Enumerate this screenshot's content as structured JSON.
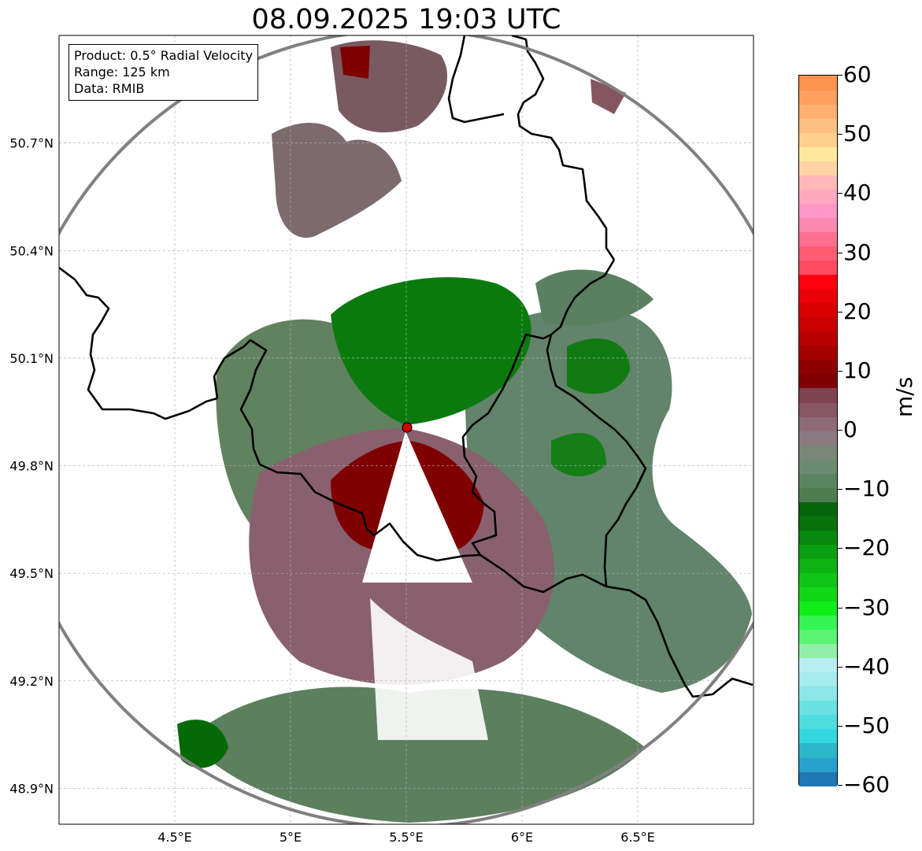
{
  "title": "08.09.2025 19:03 UTC",
  "info": {
    "product": "Product: 0.5° Radial Velocity",
    "range": "Range: 125 km",
    "data": "Data: RMIB"
  },
  "map": {
    "lon_range": [
      4.0,
      7.0
    ],
    "lat_range": [
      48.8,
      51.0
    ],
    "lon_ticks": [
      "4.5°E",
      "5°E",
      "5.5°E",
      "6°E",
      "6.5°E"
    ],
    "lon_tick_values": [
      4.5,
      5.0,
      5.5,
      6.0,
      6.5
    ],
    "lat_ticks": [
      "50.7°N",
      "50.4°N",
      "50.1°N",
      "49.8°N",
      "49.5°N",
      "49.2°N",
      "48.9°N"
    ],
    "lat_tick_values": [
      50.7,
      50.4,
      50.1,
      49.8,
      49.5,
      49.2,
      48.9
    ],
    "radar_site": {
      "lon": 5.505,
      "lat": 49.914
    },
    "range_km": 125,
    "grid": true
  },
  "colorbar": {
    "label": "m/s",
    "min": -60,
    "max": 60,
    "tick_labels": [
      "60",
      "50",
      "40",
      "30",
      "20",
      "10",
      "0",
      "−10",
      "−20",
      "−30",
      "−40",
      "−50",
      "−60"
    ],
    "tick_values": [
      60,
      50,
      40,
      30,
      20,
      10,
      0,
      -10,
      -20,
      -30,
      -40,
      -50,
      -60
    ],
    "colors_low_to_high": [
      "#1f77b4",
      "#2aa0d0",
      "#2ab8c8",
      "#33d8de",
      "#4fdde0",
      "#6ae1e3",
      "#8de6e8",
      "#a6ebee",
      "#b8eef2",
      "#91f0a8",
      "#5cf372",
      "#35f552",
      "#10ee18",
      "#0fd817",
      "#0ec516",
      "#0db313",
      "#0a9f10",
      "#08880e",
      "#06730b",
      "#046609",
      "#4f7d52",
      "#5a8560",
      "#6a8b6f",
      "#7a8677",
      "#8a7a82",
      "#8d6b76",
      "#875763",
      "#7e4250",
      "#7f0000",
      "#8f0000",
      "#a40000",
      "#b80000",
      "#c90000",
      "#da0000",
      "#ec0008",
      "#ff0010",
      "#ff4a62",
      "#ff5c72",
      "#ff7090",
      "#ff88b0",
      "#ff98c6",
      "#ffa8c0",
      "#ffb8b8",
      "#ffd4a4",
      "#ffe89a",
      "#ffd08a",
      "#ffc080",
      "#ffb070",
      "#ffa060",
      "#ff9350"
    ]
  }
}
